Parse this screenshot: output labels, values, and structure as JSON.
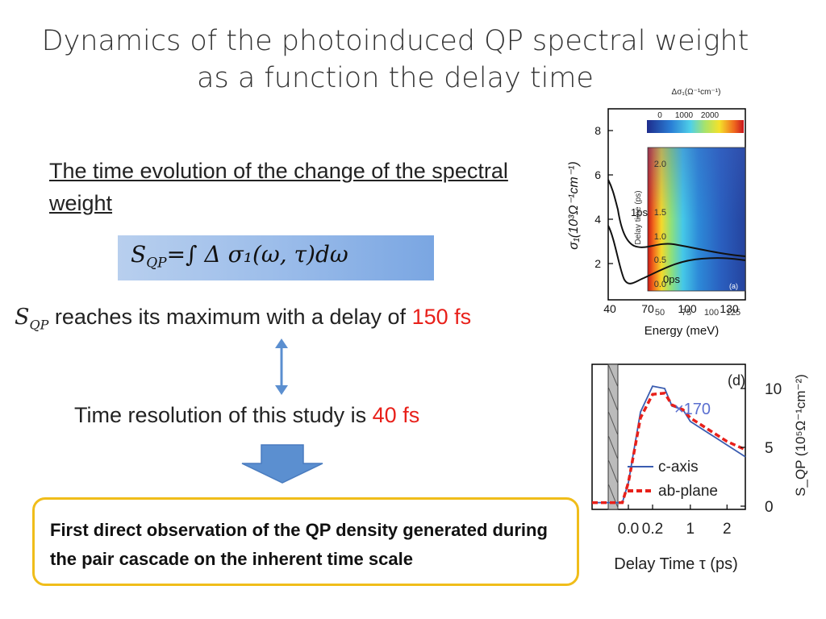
{
  "slide": {
    "title_line1": "Dynamics of the photoinduced QP spectral weight",
    "title_line2": "as a function the delay time",
    "subheading": "The time evolution of the change of the spectral weight",
    "formula_symbol": "S",
    "formula_subscript": "QP",
    "formula_rest": "=∫ Δ σ₁(ω, τ)dω",
    "max_sym": "S",
    "max_sub": "QP",
    "max_text": " reaches its maximum with a delay of ",
    "max_value": "150 fs",
    "resolution_text": "Time resolution of this study is ",
    "resolution_value": "40 fs",
    "conclusion": "First direct observation of the QP density generated during the pair cascade on the inherent time scale",
    "colors": {
      "accent_red": "#e8201a",
      "arrow_blue": "#5b8fd0",
      "box_border": "#f0bd1a"
    }
  },
  "chart_data": [
    {
      "type": "heatmap",
      "panel_label": "(a)",
      "colorbar_title": "Δσ₁(Ω⁻¹cm⁻¹)",
      "colorbar_ticks": [
        "0",
        "1000",
        "2000"
      ],
      "y_ticks_outer": [
        "2",
        "4",
        "6",
        "8"
      ],
      "y_label_outer": "σ₁(10³Ω⁻¹cm⁻¹)",
      "x_ticks_outer": [
        "40",
        "70",
        "100",
        "130"
      ],
      "y_ticks_inner": [
        "0.0",
        "0.5",
        "1.0",
        "1.5",
        "2.0"
      ],
      "y_label_inner": "Delay time (ps)",
      "x_ticks_inner": [
        "50",
        "75",
        "100",
        "125"
      ],
      "x_label": "Energy (meV)",
      "curve_labels": [
        "1ps",
        "0ps"
      ]
    },
    {
      "type": "line",
      "panel_label": "(d)",
      "x_ticks": [
        "0.0",
        "0.2",
        "1",
        "2"
      ],
      "x_label": "Delay Time τ (ps)",
      "y_ticks": [
        "0",
        "5",
        "10"
      ],
      "y_label": "S_QP (10⁵Ω⁻¹cm⁻²)",
      "annotation": "×170",
      "series": [
        {
          "name": "c-axis",
          "color": "#3a5cb0",
          "style": "solid",
          "x": [
            -0.3,
            -0.05,
            0.0,
            0.1,
            0.2,
            0.3,
            0.5,
            0.8,
            1.0,
            1.5,
            2.0,
            2.5
          ],
          "y": [
            0.3,
            0.3,
            2.0,
            8.0,
            10.2,
            10.0,
            8.5,
            8.2,
            7.2,
            6.2,
            5.2,
            4.2
          ]
        },
        {
          "name": "ab-plane",
          "color": "#e8201a",
          "style": "dashed",
          "x": [
            -0.3,
            -0.05,
            0.0,
            0.1,
            0.2,
            0.3,
            0.5,
            0.8,
            1.0,
            1.5,
            2.0,
            2.5
          ],
          "y": [
            0.3,
            0.3,
            2.0,
            7.5,
            9.5,
            9.6,
            8.6,
            8.2,
            7.5,
            6.5,
            5.5,
            4.8
          ]
        }
      ]
    }
  ]
}
